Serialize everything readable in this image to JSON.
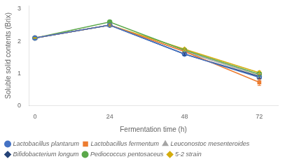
{
  "chart_data": {
    "type": "line",
    "x": [
      0,
      24,
      48,
      72
    ],
    "series": [
      {
        "name": "Lactobacillus plantarum",
        "color": "#4472C4",
        "marker": "circle",
        "values": [
          2.1,
          2.5,
          1.6,
          0.87
        ],
        "error": [
          0.01,
          0.03,
          0.04,
          0.06
        ]
      },
      {
        "name": "Lactobacillus fermentum",
        "color": "#ED7D31",
        "marker": "square",
        "values": [
          2.1,
          2.5,
          1.68,
          0.72
        ],
        "error": [
          0.01,
          0.03,
          0.04,
          0.1
        ]
      },
      {
        "name": "Leuconostoc mesenteroides",
        "color": "#A5A5A5",
        "marker": "triangle",
        "values": [
          2.1,
          2.5,
          1.68,
          0.93
        ],
        "error": [
          0.01,
          0.03,
          0.03,
          0.06
        ]
      },
      {
        "name": "Bifidobacterium longum",
        "color": "#264478",
        "marker": "diamond",
        "values": [
          2.1,
          2.5,
          1.6,
          0.9
        ],
        "error": [
          0.01,
          0.03,
          0.04,
          0.06
        ]
      },
      {
        "name": "Pediococcus pentosaceus",
        "color": "#5BA84B",
        "marker": "circle",
        "values": [
          2.1,
          2.6,
          1.72,
          0.97
        ],
        "error": [
          0.01,
          0.02,
          0.03,
          0.06
        ]
      },
      {
        "name": "5-2 strain",
        "color": "#D4AC0D",
        "marker": "diamond",
        "values": [
          2.1,
          2.5,
          1.75,
          1.02
        ],
        "error": [
          0.01,
          0.03,
          0.03,
          0.05
        ]
      }
    ],
    "xlabel": "Fermentation time (h)",
    "ylabel": "Soluble solid contents (Brix)",
    "xlim": [
      -2,
      78
    ],
    "ylim": [
      0,
      3.1
    ],
    "xticks": [
      0,
      24,
      48,
      72
    ],
    "yticks": [
      0,
      1,
      2,
      3
    ],
    "grid": false,
    "legend": "lower left"
  }
}
